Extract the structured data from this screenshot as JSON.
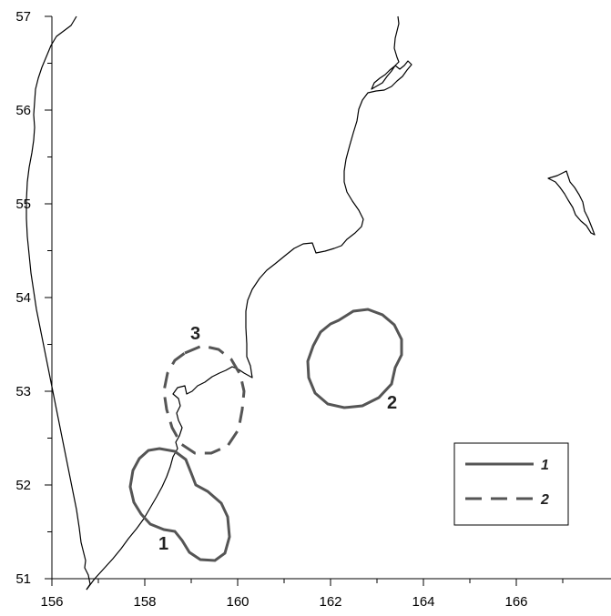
{
  "map": {
    "x_ticks": [
      "156",
      "158",
      "160",
      "162",
      "164",
      "166"
    ],
    "y_ticks": [
      "51",
      "52",
      "53",
      "54",
      "55",
      "56",
      "57"
    ],
    "zones": [
      {
        "id": "1",
        "label": "1",
        "style": "solid"
      },
      {
        "id": "2",
        "label": "2",
        "style": "solid"
      },
      {
        "id": "3",
        "label": "3",
        "style": "dashed"
      }
    ],
    "legend": [
      {
        "label": "1",
        "style": "solid"
      },
      {
        "label": "2",
        "style": "dashed"
      }
    ],
    "colors": {
      "zone_stroke": "#555555",
      "coastline": "#000000",
      "frame": "#000000"
    }
  }
}
